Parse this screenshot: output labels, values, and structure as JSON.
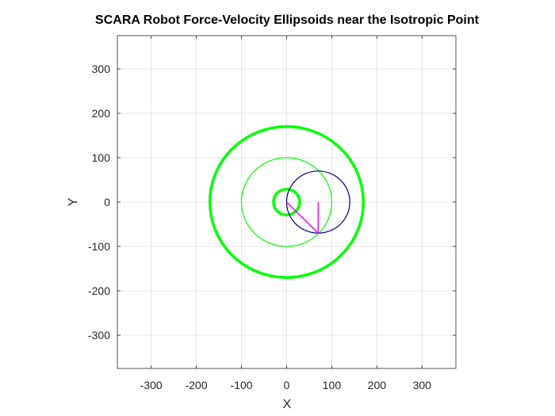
{
  "chart_data": {
    "type": "line",
    "title": "SCARA Robot Force-Velocity Ellipsoids near the Isotropic Point",
    "xlabel": "X",
    "ylabel": "Y",
    "xlim": [
      -375,
      375
    ],
    "ylim": [
      -375,
      375
    ],
    "xticks": [
      -300,
      -200,
      -100,
      0,
      100,
      200,
      300
    ],
    "yticks": [
      -300,
      -200,
      -100,
      0,
      100,
      200,
      300
    ],
    "xtick_labels": [
      "-300",
      "-200",
      "-100",
      "0",
      "100",
      "200",
      "300"
    ],
    "ytick_labels": [
      "-300",
      "-200",
      "-100",
      "0",
      "100",
      "200",
      "300"
    ],
    "grid": true,
    "circles": [
      {
        "cx": 0,
        "cy": 0,
        "r": 170,
        "color": "#00ff00",
        "width": 3.5
      },
      {
        "cx": 0,
        "cy": 0,
        "r": 100,
        "color": "#00ff00",
        "width": 1.2
      },
      {
        "cx": 0,
        "cy": 0,
        "r": 29,
        "color": "#00ff00",
        "width": 3.5
      },
      {
        "cx": 70,
        "cy": 0,
        "r": 70,
        "color": "#000080",
        "width": 1.2
      }
    ],
    "series": [
      {
        "x": [
          0,
          70,
          70
        ],
        "y": [
          0,
          -70,
          0
        ],
        "color": "#ff00ff",
        "width": 1.5
      }
    ]
  }
}
